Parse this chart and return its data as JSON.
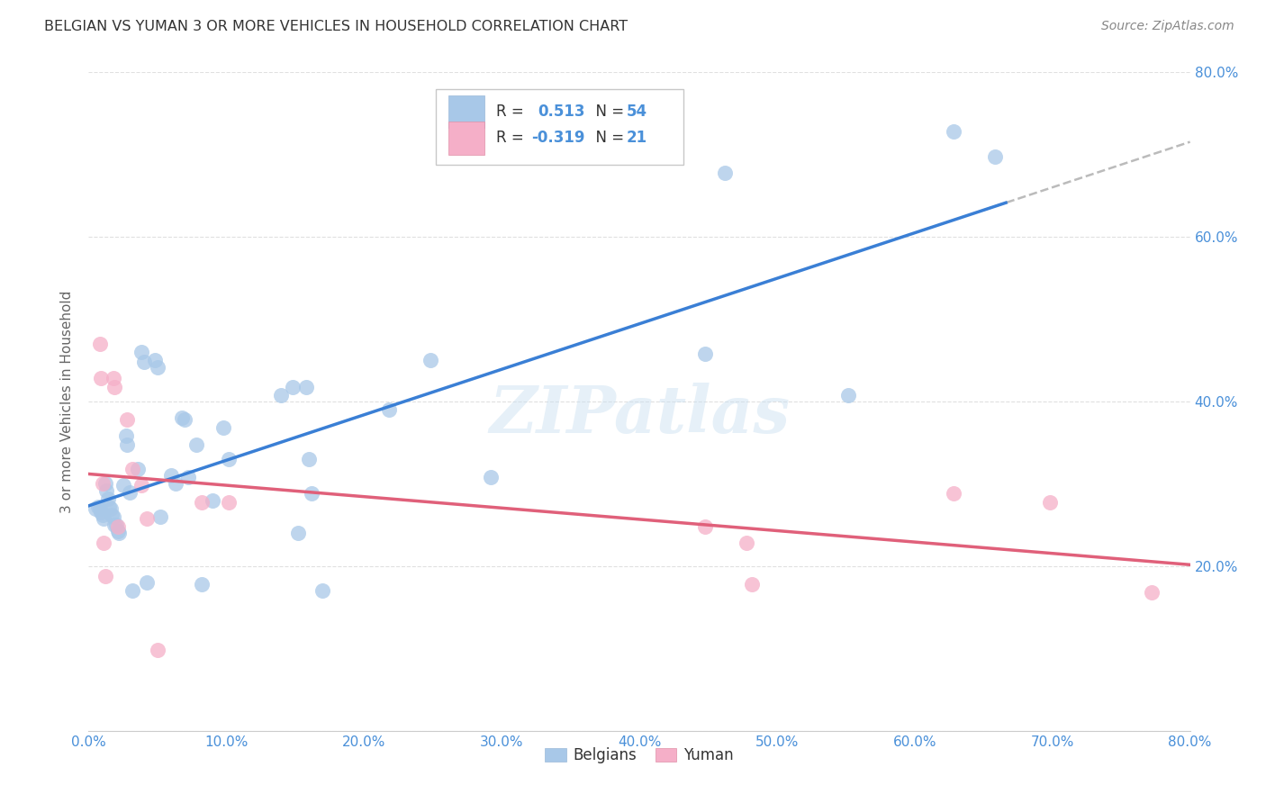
{
  "title": "BELGIAN VS YUMAN 3 OR MORE VEHICLES IN HOUSEHOLD CORRELATION CHART",
  "source": "Source: ZipAtlas.com",
  "ylabel": "3 or more Vehicles in Household",
  "xlim": [
    0.0,
    0.8
  ],
  "ylim": [
    0.0,
    0.8
  ],
  "ytick_values": [
    0.0,
    0.2,
    0.4,
    0.6,
    0.8
  ],
  "xtick_values": [
    0.0,
    0.1,
    0.2,
    0.3,
    0.4,
    0.5,
    0.6,
    0.7,
    0.8
  ],
  "belgian_color": "#a8c8e8",
  "yuman_color": "#f5afc8",
  "belgian_line_color": "#3a7fd5",
  "yuman_line_color": "#e0607a",
  "dashed_line_color": "#aaaaaa",
  "belgian_R": 0.513,
  "belgian_N": 54,
  "yuman_R": -0.319,
  "yuman_N": 21,
  "belgians_x": [
    0.005,
    0.007,
    0.008,
    0.009,
    0.01,
    0.011,
    0.012,
    0.013,
    0.014,
    0.015,
    0.016,
    0.017,
    0.018,
    0.019,
    0.02,
    0.021,
    0.022,
    0.025,
    0.027,
    0.028,
    0.03,
    0.032,
    0.036,
    0.038,
    0.04,
    0.042,
    0.048,
    0.05,
    0.052,
    0.06,
    0.063,
    0.068,
    0.07,
    0.072,
    0.078,
    0.082,
    0.09,
    0.098,
    0.102,
    0.14,
    0.148,
    0.152,
    0.158,
    0.16,
    0.162,
    0.17,
    0.218,
    0.248,
    0.292,
    0.448,
    0.462,
    0.552,
    0.628,
    0.658
  ],
  "belgians_y": [
    0.27,
    0.272,
    0.27,
    0.265,
    0.262,
    0.258,
    0.3,
    0.292,
    0.282,
    0.272,
    0.27,
    0.262,
    0.26,
    0.25,
    0.25,
    0.242,
    0.24,
    0.298,
    0.358,
    0.348,
    0.29,
    0.17,
    0.318,
    0.46,
    0.448,
    0.18,
    0.45,
    0.442,
    0.26,
    0.31,
    0.3,
    0.38,
    0.378,
    0.308,
    0.348,
    0.178,
    0.28,
    0.368,
    0.33,
    0.408,
    0.418,
    0.24,
    0.418,
    0.33,
    0.288,
    0.17,
    0.39,
    0.45,
    0.308,
    0.458,
    0.678,
    0.408,
    0.728,
    0.698
  ],
  "yuman_x": [
    0.008,
    0.009,
    0.01,
    0.011,
    0.012,
    0.018,
    0.019,
    0.021,
    0.028,
    0.032,
    0.038,
    0.042,
    0.05,
    0.082,
    0.102,
    0.448,
    0.478,
    0.482,
    0.628,
    0.698,
    0.772
  ],
  "yuman_y": [
    0.47,
    0.428,
    0.3,
    0.228,
    0.188,
    0.428,
    0.418,
    0.248,
    0.378,
    0.318,
    0.298,
    0.258,
    0.098,
    0.278,
    0.278,
    0.248,
    0.228,
    0.178,
    0.288,
    0.278,
    0.168
  ],
  "background_color": "#ffffff",
  "grid_color": "#e0e0e0",
  "tick_color": "#4a90d9",
  "title_color": "#333333",
  "source_color": "#888888",
  "ylabel_color": "#666666"
}
